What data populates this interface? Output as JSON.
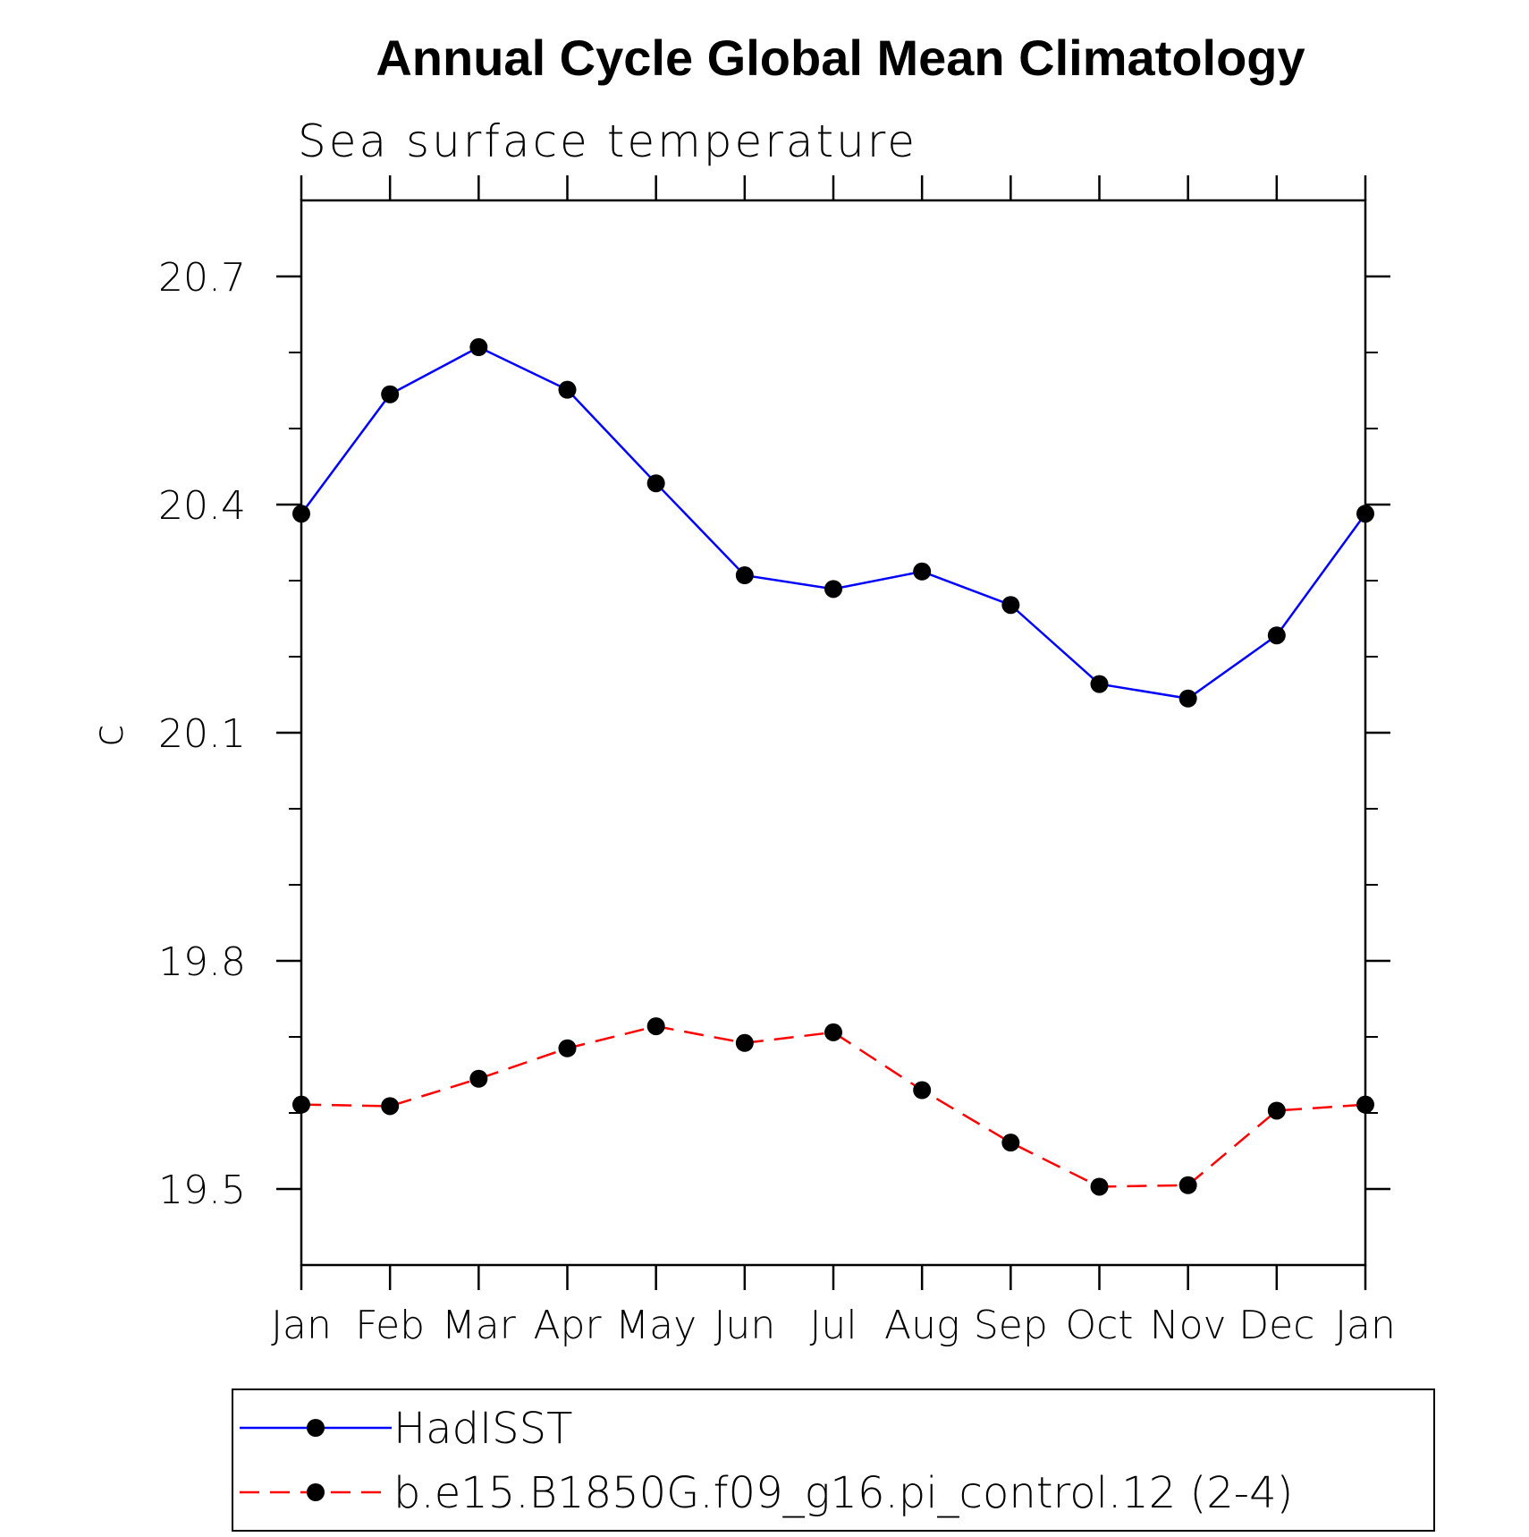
{
  "chart_data": {
    "type": "line",
    "title": "Annual Cycle Global Mean Climatology",
    "subtitle": "Sea surface temperature",
    "xlabel": "",
    "ylabel": "c",
    "categories": [
      "Jan",
      "Feb",
      "Mar",
      "Apr",
      "May",
      "Jun",
      "Jul",
      "Aug",
      "Sep",
      "Oct",
      "Nov",
      "Dec",
      "Jan"
    ],
    "ylim": [
      19.4,
      20.8
    ],
    "yticks": [
      "20.7",
      "20.4",
      "20.1",
      "19.8",
      "19.5"
    ],
    "ytick_values": [
      20.7,
      20.4,
      20.1,
      19.8,
      19.5
    ],
    "grid": false,
    "legend_position": "bottom",
    "series": [
      {
        "name": "HadISST",
        "color": "#0000ff",
        "line_style": "solid",
        "marker": "filled-circle",
        "values": [
          20.388,
          20.545,
          20.607,
          20.551,
          20.428,
          20.307,
          20.289,
          20.312,
          20.268,
          20.164,
          20.145,
          20.228,
          20.388
        ]
      },
      {
        "name": "b.e15.B1850G.f09_g16.pi_control.12 (2-4)",
        "color": "#ff0000",
        "line_style": "dashed",
        "marker": "filled-circle",
        "values": [
          19.611,
          19.609,
          19.645,
          19.685,
          19.714,
          19.692,
          19.706,
          19.63,
          19.561,
          19.503,
          19.505,
          19.603,
          19.611
        ]
      }
    ]
  }
}
